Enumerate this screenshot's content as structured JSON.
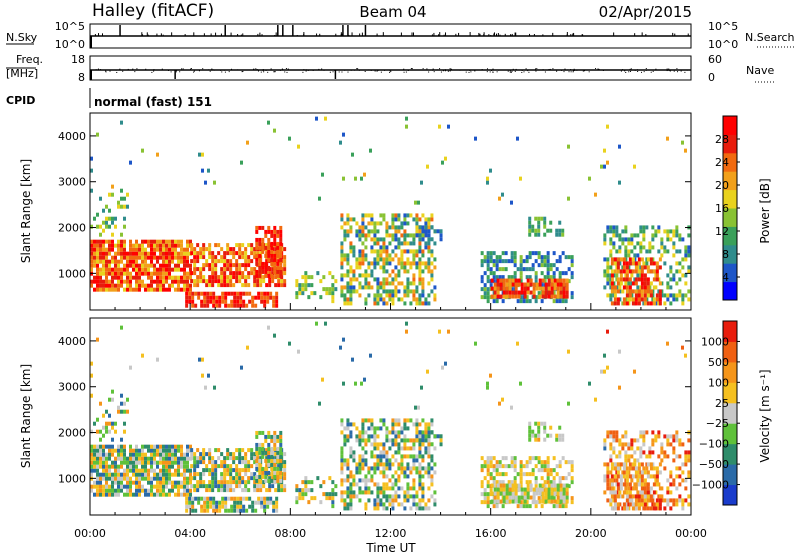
{
  "header": {
    "station": "Halley (fitACF)",
    "beam": "Beam 04",
    "date": "02/Apr/2015"
  },
  "top_panels": {
    "nsky": {
      "label": "N.Sky",
      "ticks": [
        "10^5",
        "10^0"
      ],
      "right_label": "N.Search",
      "right_ticks": [
        "10^5",
        "10^0"
      ]
    },
    "freq": {
      "label_line1": "Freq.",
      "label_line2": "[MHz]",
      "ticks": [
        "18",
        "8"
      ],
      "right_label": "Nave",
      "right_ticks": [
        "60",
        "0"
      ]
    },
    "cpid": {
      "label": "CPID",
      "value": "normal (fast) 151"
    }
  },
  "chart_data": [
    {
      "type": "heatmap",
      "name": "power",
      "ylabel": "Slant Range [km]",
      "yticks": [
        "4000",
        "3000",
        "2000",
        "1000"
      ],
      "ylim": [
        200,
        4500
      ],
      "xlim": [
        0,
        24
      ],
      "colorbar": {
        "label": "Power [dB]",
        "ticks": [
          "28",
          "24",
          "20",
          "16",
          "12",
          "8",
          "4"
        ],
        "colors": [
          "#0000ff",
          "#1d56c8",
          "#2f8c8c",
          "#3aa05a",
          "#89c233",
          "#e9d21e",
          "#f2a01a",
          "#f26a0f",
          "#e81c0c",
          "#ff0000"
        ]
      }
    },
    {
      "type": "heatmap",
      "name": "velocity",
      "ylabel": "Slant Range [km]",
      "yticks": [
        "4000",
        "3000",
        "2000",
        "1000"
      ],
      "ylim": [
        200,
        4500
      ],
      "xlim": [
        0,
        24
      ],
      "xticks": [
        "00:00",
        "04:00",
        "08:00",
        "12:00",
        "16:00",
        "20:00",
        "00:00"
      ],
      "xlabel": "Time UT",
      "colorbar": {
        "label": "Velocity [m s⁻¹]",
        "ticks": [
          "1000",
          "500",
          "100",
          "25",
          "−25",
          "−100",
          "−500",
          "−1000"
        ],
        "colors": [
          "#1a3ccc",
          "#2a6aa8",
          "#2e8c6a",
          "#5fc13a",
          "#c8c8c8",
          "#f5c020",
          "#f5951a",
          "#f06012",
          "#e81c0c"
        ]
      }
    }
  ]
}
